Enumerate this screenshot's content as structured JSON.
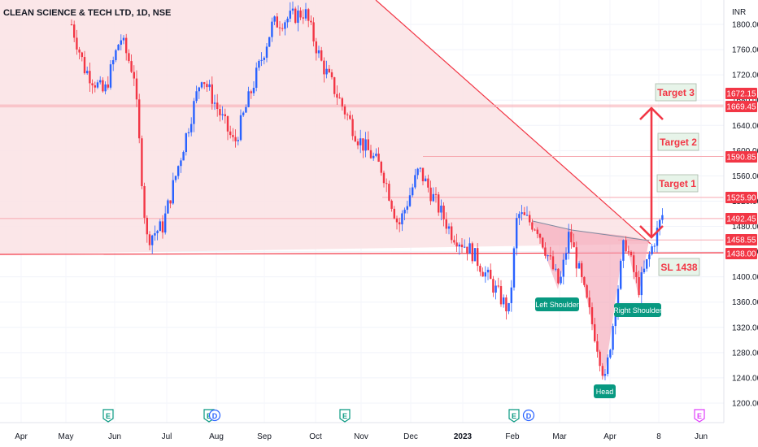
{
  "header": {
    "title": "CLEAN SCIENCE & TECH LTD, 1D, NSE",
    "currency": "INR"
  },
  "colors": {
    "up": "#2962ff",
    "down": "#f23645",
    "zone_fill": "#fbe3e5",
    "trendline": "#f23645",
    "badge": "#f23645",
    "target_box": "#e7f4e9",
    "target_text": "#f23645",
    "label_teal": "#089981",
    "earnings_icon": "#089981",
    "dividend_icon": "#2962ff",
    "future_earnings_icon": "#e040fb"
  },
  "price_badges": [
    "1672.15",
    "1669.45",
    "1590.85",
    "1525.90",
    "1492.45",
    "1458.55",
    "1438.00"
  ],
  "annotations": {
    "target_3": "Target 3",
    "target_2": "Target 2",
    "target_1": "Target 1",
    "stop_loss": "SL 1438",
    "left_shoulder": "Left Shoulder",
    "head": "Head",
    "right_shoulder": "Right Shoulder"
  },
  "event_markers": {
    "earnings_letter": "E",
    "dividend_letter": "D"
  },
  "chart_data": {
    "type": "candlestick",
    "title": "CLEAN SCIENCE & TECH LTD, 1D, NSE",
    "y_axis": {
      "unit": "INR",
      "range": [
        1190,
        1825
      ],
      "ticks": [
        "1800.00",
        "1760.00",
        "1720.00",
        "1680.00",
        "1640.00",
        "1600.00",
        "1560.00",
        "1520.00",
        "1480.00",
        "1440.00",
        "1400.00",
        "1360.00",
        "1320.00",
        "1280.00",
        "1240.00",
        "1200.00"
      ]
    },
    "x_axis": {
      "ticks": [
        "Apr",
        "May",
        "Jun",
        "Jul",
        "Aug",
        "Sep",
        "Oct",
        "Nov",
        "Dec",
        "2023",
        "Feb",
        "Mar",
        "Apr",
        "8",
        "Jun"
      ]
    },
    "price_path_approx": [
      [
        "Apr",
        1800
      ],
      [
        "May",
        1730
      ],
      [
        "May",
        1690
      ],
      [
        "Jun",
        1780
      ],
      [
        "Jun",
        1720
      ],
      [
        "Jul",
        1460
      ],
      [
        "Jul",
        1480
      ],
      [
        "Aug",
        1720
      ],
      [
        "Aug",
        1610
      ],
      [
        "Sep",
        1800
      ],
      [
        "Oct",
        1820
      ],
      [
        "Oct",
        1740
      ],
      [
        "Nov",
        1620
      ],
      [
        "Nov",
        1570
      ],
      [
        "Dec",
        1480
      ],
      [
        "Dec",
        1570
      ],
      [
        "2023",
        1470
      ],
      [
        "2023",
        1440
      ],
      [
        "2023",
        1345
      ],
      [
        "Feb",
        1500
      ],
      [
        "Feb",
        1480
      ],
      [
        "Mar",
        1385
      ],
      [
        "Mar",
        1470
      ],
      [
        "Apr",
        1300
      ],
      [
        "Apr",
        1235
      ],
      [
        "Apr",
        1460
      ],
      [
        "Apr",
        1380
      ],
      [
        "8",
        1500
      ]
    ],
    "horizontal_levels": [
      {
        "value": 1672.15
      },
      {
        "value": 1669.45
      },
      {
        "value": 1590.85
      },
      {
        "value": 1525.9
      },
      {
        "value": 1492.45
      },
      {
        "value": 1458.55
      },
      {
        "value": 1438.0
      }
    ],
    "pattern": "inverse head and shoulders",
    "targets": [
      1525.9,
      1590.85,
      1669.45
    ],
    "stop_loss": 1438.0,
    "grid": true
  }
}
